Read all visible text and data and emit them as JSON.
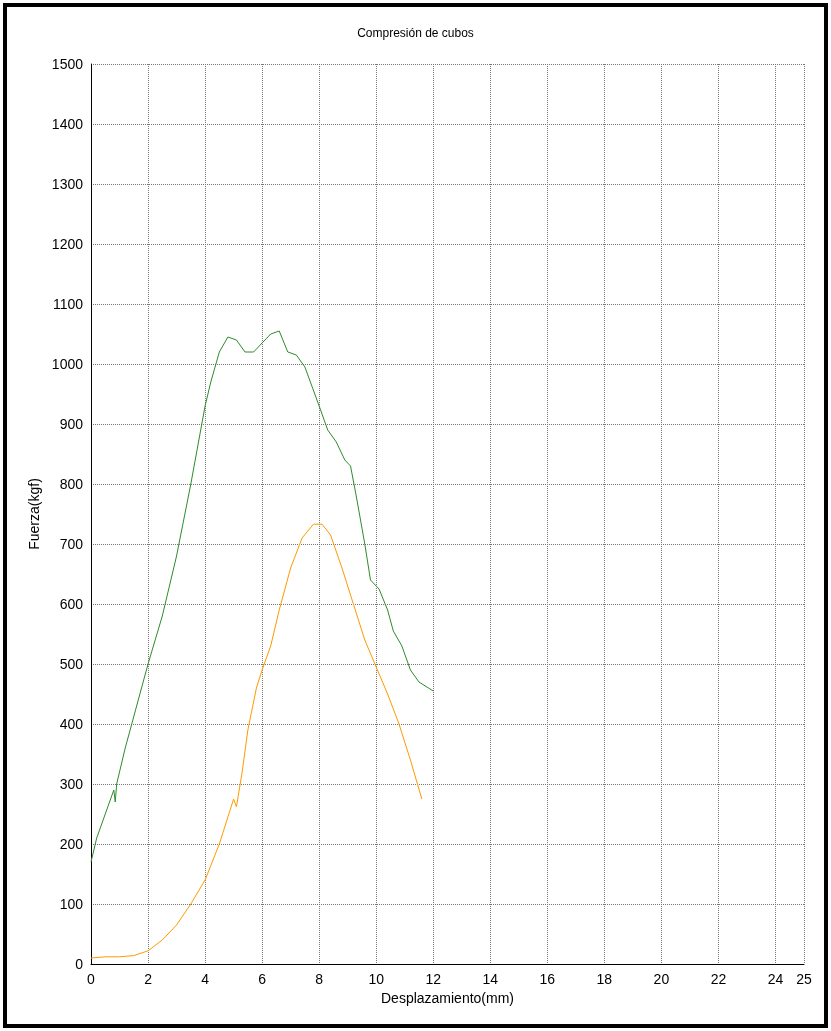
{
  "chart_data": {
    "type": "line",
    "title": "Compresión de cubos",
    "xlabel": "Desplazamiento(mm)",
    "ylabel": "Fuerza(kgf)",
    "xlim": [
      0,
      25
    ],
    "xticks": [
      0,
      2,
      4,
      6,
      8,
      10,
      12,
      14,
      16,
      18,
      20,
      22,
      24,
      25
    ],
    "ylim": [
      0,
      1500
    ],
    "yticks": [
      0,
      100,
      200,
      300,
      400,
      500,
      600,
      700,
      800,
      900,
      1000,
      1100,
      1200,
      1300,
      1400,
      1500
    ],
    "grid": true,
    "marker": "none",
    "line_style": "solid",
    "series": [
      {
        "color": "#2e8b2e",
        "x": [
          0,
          0.2,
          0.5,
          0.8,
          0.85,
          0.9,
          1.2,
          1.6,
          2,
          2.5,
          3,
          3.5,
          4,
          4.2,
          4.5,
          4.8,
          5.1,
          5.4,
          5.7,
          6,
          6.3,
          6.6,
          6.9,
          7.2,
          7.5,
          8,
          8.3,
          8.6,
          8.9,
          9.1,
          9.3,
          9.6,
          9.8,
          10.1,
          10.4,
          10.6,
          10.9,
          11.2,
          11.5,
          12
        ],
        "values": [
          170,
          210,
          250,
          290,
          270,
          300,
          360,
          430,
          500,
          580,
          680,
          800,
          930,
          970,
          1020,
          1045,
          1040,
          1020,
          1020,
          1035,
          1050,
          1055,
          1020,
          1015,
          995,
          930,
          890,
          870,
          840,
          830,
          780,
          700,
          640,
          625,
          590,
          555,
          530,
          490,
          470,
          455
        ]
      },
      {
        "color": "#ff9900",
        "x": [
          0,
          0.5,
          1,
          1.5,
          2,
          2.5,
          3,
          3.5,
          4,
          4.5,
          4.9,
          5,
          5.1,
          5.3,
          5.5,
          5.8,
          6,
          6.3,
          6.6,
          7,
          7.4,
          7.8,
          8.1,
          8.4,
          8.8,
          9.2,
          9.6,
          10,
          10.4,
          10.8,
          11.2,
          11.6
        ],
        "values": [
          10,
          12,
          12,
          14,
          22,
          40,
          65,
          100,
          140,
          200,
          260,
          275,
          262,
          320,
          390,
          460,
          490,
          530,
          590,
          660,
          710,
          733,
          733,
          715,
          660,
          600,
          540,
          495,
          450,
          400,
          340,
          275
        ]
      }
    ]
  }
}
